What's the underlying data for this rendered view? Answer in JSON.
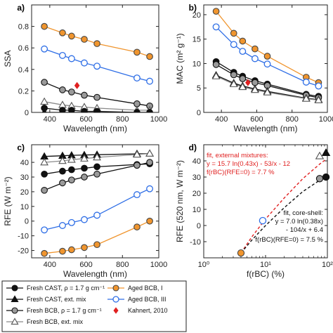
{
  "figure": {
    "colors": {
      "orange": "#f0952e",
      "blue": "#2e6ee6",
      "black": "#111111",
      "gray": "#8a8a8a",
      "red": "#e02020"
    }
  },
  "chart_data": [
    {
      "panel": "a)",
      "type": "line",
      "xlabel": "Wavelength (nm)",
      "ylabel": "SSA",
      "xlim": [
        300,
        1000
      ],
      "ylim": [
        0,
        1
      ],
      "xticks": [
        400,
        600,
        800,
        1000
      ],
      "yticks": [
        0,
        0.2,
        0.4,
        0.6,
        0.8
      ],
      "series": [
        {
          "name": "Aged BCB, I",
          "marker": "circle-filled",
          "color": "#f0952e",
          "x": [
            370,
            470,
            520,
            590,
            660,
            880,
            950
          ],
          "y": [
            0.8,
            0.74,
            0.71,
            0.68,
            0.64,
            0.56,
            0.52
          ]
        },
        {
          "name": "Aged BCB, III",
          "marker": "circle-open",
          "color": "#2e6ee6",
          "x": [
            370,
            470,
            520,
            590,
            660,
            880,
            950
          ],
          "y": [
            0.59,
            0.53,
            0.5,
            0.46,
            0.43,
            0.32,
            0.29
          ]
        },
        {
          "name": "Fresh BCB, ρ = 1.7 g cm⁻¹",
          "marker": "circle-gray",
          "color": "#111111",
          "x": [
            370,
            470,
            520,
            590,
            660,
            880,
            950
          ],
          "y": [
            0.28,
            0.21,
            0.19,
            0.16,
            0.14,
            0.08,
            0.06
          ]
        },
        {
          "name": "Fresh BCB, ext. mix",
          "marker": "triangle-open",
          "color": "#8a8a8a",
          "x": [
            370,
            470,
            520,
            590,
            660,
            880,
            950
          ],
          "y": [
            0.1,
            0.07,
            0.06,
            0.05,
            0.04,
            0.02,
            0.02
          ]
        },
        {
          "name": "Fresh CAST, ρ = 1.7 g cm⁻¹",
          "marker": "circle-filled-black",
          "color": "#111111",
          "x": [
            370,
            470,
            520,
            590,
            660,
            880,
            950
          ],
          "y": [
            0.04,
            0.02,
            0.02,
            0.01,
            0.01,
            0.0,
            0.0
          ]
        },
        {
          "name": "Fresh CAST, ext. mix",
          "marker": "triangle-filled",
          "color": "#111111",
          "x": [
            370,
            470,
            520,
            590,
            660,
            880,
            950
          ],
          "y": [
            0.0,
            0.0,
            0.0,
            0.0,
            0.0,
            0.0,
            0.0
          ]
        },
        {
          "name": "Kahnert, 2010",
          "marker": "diamond-red",
          "color": "#e02020",
          "x": [
            550
          ],
          "y": [
            0.25
          ]
        }
      ]
    },
    {
      "panel": "b)",
      "type": "line",
      "xlabel": "Wavelength (nm)",
      "ylabel": "MAC (m² g⁻¹)",
      "xlim": [
        300,
        1000
      ],
      "ylim": [
        0,
        22
      ],
      "xticks": [
        400,
        600,
        800,
        1000
      ],
      "yticks": [
        0,
        5,
        10,
        15,
        20
      ],
      "series": [
        {
          "name": "Aged BCB, I",
          "marker": "circle-filled",
          "color": "#f0952e",
          "x": [
            370,
            470,
            520,
            590,
            660,
            880,
            950
          ],
          "y": [
            20.7,
            16.2,
            14.6,
            13.0,
            11.5,
            7.2,
            6.1
          ]
        },
        {
          "name": "Aged BCB, III",
          "marker": "circle-open",
          "color": "#2e6ee6",
          "x": [
            370,
            470,
            520,
            590,
            660,
            880,
            950
          ],
          "y": [
            17.5,
            13.9,
            12.5,
            11.0,
            9.9,
            6.2,
            5.4
          ]
        },
        {
          "name": "Fresh CAST, ρ = 1.7 g cm⁻¹",
          "marker": "circle-filled-black",
          "color": "#111111",
          "x": [
            370,
            470,
            520,
            590,
            660,
            880,
            950
          ],
          "y": [
            10.4,
            8.2,
            7.4,
            6.5,
            5.8,
            3.7,
            3.3
          ]
        },
        {
          "name": "Fresh BCB, ρ = 1.7 g cm⁻¹",
          "marker": "circle-gray",
          "color": "#111111",
          "x": [
            370,
            470,
            520,
            590,
            660,
            880,
            950
          ],
          "y": [
            9.8,
            7.7,
            6.9,
            6.1,
            5.5,
            3.5,
            3.0
          ]
        },
        {
          "name": "Fresh CAST, ext. mix",
          "marker": "triangle-filled",
          "color": "#111111",
          "x": [
            370,
            470,
            520,
            590,
            660,
            880,
            950
          ],
          "y": [
            7.6,
            6.0,
            5.4,
            4.8,
            4.3,
            2.9,
            2.6
          ]
        },
        {
          "name": "Fresh BCB, ext. mix",
          "marker": "triangle-open",
          "color": "#8a8a8a",
          "x": [
            370,
            470,
            520,
            590,
            660,
            880,
            950
          ],
          "y": [
            7.4,
            5.8,
            5.2,
            4.6,
            4.1,
            2.8,
            2.5
          ]
        },
        {
          "name": "Kahnert, 2010",
          "marker": "diamond-red",
          "color": "#e02020",
          "x": [
            550
          ],
          "y": [
            6.1
          ]
        }
      ]
    },
    {
      "panel": "c)",
      "type": "line",
      "xlabel": "Wavelength (nm)",
      "ylabel": "RFE (W m⁻²)",
      "xlim": [
        300,
        1000
      ],
      "ylim": [
        -25,
        52
      ],
      "xticks": [
        400,
        600,
        800,
        1000
      ],
      "yticks": [
        -20,
        -10,
        0,
        10,
        20,
        30,
        40
      ],
      "series": [
        {
          "name": "Fresh CAST, ext. mix",
          "marker": "triangle-filled",
          "color": "#111111",
          "x": [
            370,
            470,
            520,
            590,
            660,
            880,
            950
          ],
          "y": [
            44,
            44.5,
            44.8,
            45,
            45.2,
            45.8,
            46
          ]
        },
        {
          "name": "Fresh BCB, ext. mix",
          "marker": "triangle-open",
          "color": "#8a8a8a",
          "x": [
            370,
            470,
            520,
            590,
            660,
            880,
            950
          ],
          "y": [
            40,
            41,
            41.8,
            42.6,
            43.4,
            45.3,
            46
          ]
        },
        {
          "name": "Fresh CAST, ρ = 1.7 g cm⁻¹",
          "marker": "circle-filled-black",
          "color": "#111111",
          "x": [
            370,
            470,
            520,
            590,
            660,
            880,
            950
          ],
          "y": [
            32,
            34,
            35,
            36,
            37,
            38.5,
            39
          ]
        },
        {
          "name": "Fresh BCB, ρ = 1.7 g cm⁻¹",
          "marker": "circle-gray",
          "color": "#111111",
          "x": [
            370,
            470,
            520,
            590,
            660,
            880,
            950
          ],
          "y": [
            21,
            26,
            28,
            30,
            32,
            38,
            40
          ]
        },
        {
          "name": "Aged BCB, III",
          "marker": "circle-open",
          "color": "#2e6ee6",
          "x": [
            370,
            470,
            520,
            590,
            660,
            880,
            950
          ],
          "y": [
            -6,
            -3,
            -1,
            1,
            4,
            18,
            22
          ]
        },
        {
          "name": "Aged BCB, I",
          "marker": "circle-filled",
          "color": "#f0952e",
          "x": [
            370,
            470,
            520,
            590,
            660,
            880,
            950
          ],
          "y": [
            -22,
            -20.5,
            -19.5,
            -18,
            -16,
            -4,
            0
          ]
        }
      ]
    },
    {
      "panel": "d)",
      "type": "scatter",
      "xlabel": "f(rBC) (%)",
      "ylabel": "RFE (520 nm, W m⁻²)",
      "xscale": "log",
      "xlim": [
        1,
        100
      ],
      "ylim": [
        -20,
        50
      ],
      "xticks": [
        1,
        10,
        100
      ],
      "xticklabels": [
        "10⁰",
        "10¹",
        "10²"
      ],
      "yticks": [
        -10,
        0,
        10,
        20,
        30,
        40
      ],
      "points": [
        {
          "name": "Aged BCB, I",
          "marker": "circle-filled",
          "color": "#f0952e",
          "x": 4,
          "y": -17
        },
        {
          "name": "Aged BCB, III",
          "marker": "circle-open",
          "color": "#2e6ee6",
          "x": 9,
          "y": 3
        },
        {
          "name": "Fresh BCB, ρ = 1.7 g cm⁻¹",
          "marker": "circle-gray",
          "color": "#111111",
          "x": 75,
          "y": 29
        },
        {
          "name": "Fresh CAST, ρ = 1.7 g cm⁻¹",
          "marker": "circle-filled-black",
          "color": "#111111",
          "x": 95,
          "y": 30
        },
        {
          "name": "Fresh BCB, ext. mix",
          "marker": "triangle-open",
          "color": "#8a8a8a",
          "x": 75,
          "y": 43
        },
        {
          "name": "Fresh CAST, ext. mix",
          "marker": "triangle-filled",
          "color": "#111111",
          "x": 95,
          "y": 45
        }
      ],
      "fits": [
        {
          "name": "fit, external mixtures",
          "color": "#e02020",
          "x": [
            4,
            6,
            10,
            20,
            40,
            75,
            95
          ],
          "y": [
            -17,
            -7,
            4,
            17,
            29,
            38,
            41
          ]
        },
        {
          "name": "fit, core-shell",
          "color": "#111111",
          "x": [
            4,
            6,
            10,
            20,
            40,
            75,
            95
          ],
          "y": [
            -17,
            -9,
            0,
            11,
            21,
            28,
            30
          ]
        }
      ],
      "annotations": {
        "ext_title": "fit, external mixtures:",
        "ext_eq": "y = 15.7 ln(0.43x) - 53/x - 12",
        "ext_zero": "f(rBC)(RFE=0) = 7.7 %",
        "cs_title": "fit, core-shell:",
        "cs_eq1": "y = 7.0 ln(0.38x)",
        "cs_eq2": "- 104/x + 6.4",
        "cs_zero": "f(rBC)(RFE=0) = 7.5 %"
      }
    }
  ],
  "legend": {
    "entries": [
      {
        "label": "Fresh CAST, ρ = 1.7 g cm⁻¹",
        "marker": "circle-filled-black",
        "color": "#111111"
      },
      {
        "label": "Aged BCB, I",
        "marker": "circle-filled",
        "color": "#f0952e"
      },
      {
        "label": "Fresh CAST, ext. mix",
        "marker": "triangle-filled",
        "color": "#111111"
      },
      {
        "label": "Aged BCB, III",
        "marker": "circle-open",
        "color": "#2e6ee6"
      },
      {
        "label": "Fresh BCB, ρ = 1.7 g cm⁻¹",
        "marker": "circle-gray",
        "color": "#111111"
      },
      {
        "label": "Kahnert, 2010",
        "marker": "diamond-red",
        "color": "#e02020"
      },
      {
        "label": "Fresh BCB, ext. mix",
        "marker": "triangle-open",
        "color": "#8a8a8a"
      }
    ]
  }
}
